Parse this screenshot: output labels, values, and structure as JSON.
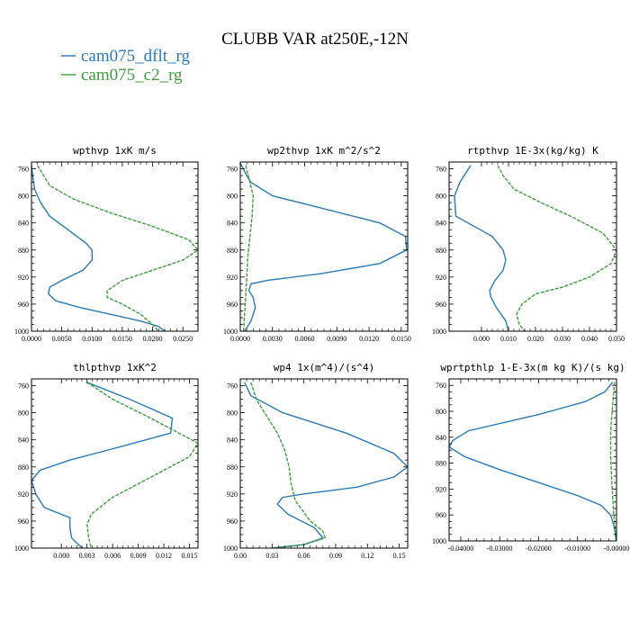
{
  "title": "CLUBB VAR at250E,-12N",
  "colors": {
    "dflt": "#2b7ab8",
    "c2": "#3c9e3c"
  },
  "chart_data": [
    {
      "type": "line",
      "title": "wpthvp  1xK m/s",
      "ylim": [
        1000,
        750
      ],
      "yticks": [
        760,
        800,
        840,
        880,
        920,
        960,
        1000
      ],
      "xlim": [
        0,
        0.0275
      ],
      "xticks": [
        "0.0000",
        "0.0050",
        "0.0100",
        "0.0150",
        "0.0200",
        "0.0250"
      ],
      "series": [
        {
          "name": "cam075_dflt_rg",
          "style": "solid",
          "x": [
            0.0,
            0.0002,
            0.0005,
            0.0015,
            0.003,
            0.006,
            0.009,
            0.01,
            0.01,
            0.0085,
            0.005,
            0.003,
            0.0028,
            0.004,
            0.008,
            0.013,
            0.018,
            0.021,
            0.022
          ],
          "y": [
            755,
            770,
            790,
            810,
            830,
            850,
            870,
            880,
            895,
            910,
            925,
            935,
            945,
            955,
            965,
            975,
            985,
            993,
            1000
          ]
        },
        {
          "name": "cam075_c2_rg",
          "style": "dashed",
          "x": [
            0.001,
            0.002,
            0.003,
            0.007,
            0.013,
            0.02,
            0.026,
            0.0275,
            0.025,
            0.02,
            0.015,
            0.0125,
            0.0125,
            0.015,
            0.018,
            0.02,
            0.021
          ],
          "y": [
            755,
            770,
            785,
            805,
            825,
            845,
            865,
            880,
            895,
            910,
            925,
            940,
            950,
            960,
            975,
            990,
            1000
          ]
        }
      ]
    },
    {
      "type": "line",
      "title": "wp2thvp  1xK m^2/s^2",
      "ylim": [
        1000,
        750
      ],
      "yticks": [
        760,
        800,
        840,
        880,
        920,
        960,
        1000
      ],
      "xlim": [
        0,
        0.0156
      ],
      "xticks": [
        "0.0000",
        "0.0030",
        "0.0060",
        "0.0090",
        "0.0120",
        "0.0150"
      ],
      "series": [
        {
          "name": "cam075_dflt_rg",
          "style": "solid",
          "x": [
            0.0,
            0.0006,
            0.001,
            0.003,
            0.008,
            0.013,
            0.0154,
            0.0155,
            0.013,
            0.0075,
            0.0025,
            0.001,
            0.0008,
            0.0012,
            0.0014,
            0.001,
            0.0004
          ],
          "y": [
            752,
            770,
            780,
            800,
            820,
            840,
            860,
            880,
            900,
            915,
            925,
            930,
            940,
            950,
            965,
            985,
            1000
          ]
        },
        {
          "name": "cam075_c2_rg",
          "style": "dashed",
          "x": [
            0.0005,
            0.0009,
            0.0012,
            0.0011,
            0.0009,
            0.0007,
            0.0006,
            0.0005,
            0.0004,
            0.0003
          ],
          "y": [
            755,
            780,
            800,
            830,
            860,
            890,
            920,
            950,
            975,
            1000
          ]
        }
      ]
    },
    {
      "type": "line",
      "title": "rtpthvp  1E-3x(kg/kg) K",
      "ylim": [
        1000,
        750
      ],
      "yticks": [
        760,
        800,
        840,
        880,
        920,
        960,
        1000
      ],
      "xlim": [
        -0.012,
        0.05
      ],
      "xticks": [
        "0.000",
        "0.010",
        "0.020",
        "0.030",
        "0.040",
        "0.050"
      ],
      "series": [
        {
          "name": "cam075_dflt_rg",
          "style": "solid",
          "x": [
            -0.004,
            -0.008,
            -0.01,
            -0.0095,
            -0.005,
            0.004,
            0.008,
            0.009,
            0.008,
            0.005,
            0.003,
            0.0035,
            0.0055,
            0.009,
            0.01
          ],
          "y": [
            755,
            780,
            800,
            830,
            840,
            860,
            880,
            895,
            910,
            925,
            940,
            950,
            965,
            985,
            1000
          ]
        },
        {
          "name": "cam075_c2_rg",
          "style": "dashed",
          "x": [
            0.006,
            0.008,
            0.012,
            0.022,
            0.033,
            0.045,
            0.05,
            0.048,
            0.04,
            0.03,
            0.02,
            0.015,
            0.013,
            0.014,
            0.016
          ],
          "y": [
            755,
            770,
            790,
            810,
            830,
            855,
            880,
            900,
            920,
            935,
            945,
            960,
            975,
            990,
            1000
          ]
        }
      ]
    },
    {
      "type": "line",
      "title": "thlpthvp  1xK^2",
      "ylim": [
        1000,
        750
      ],
      "yticks": [
        760,
        800,
        840,
        880,
        920,
        960,
        1000
      ],
      "xlim": [
        -0.0035,
        0.016
      ],
      "xticks": [
        "0.000",
        "0.003",
        "0.006",
        "0.009",
        "0.012",
        "0.015"
      ],
      "series": [
        {
          "name": "cam075_dflt_rg",
          "style": "solid",
          "x": [
            0.003,
            0.008,
            0.013,
            0.0128,
            0.007,
            0.001,
            -0.0025,
            -0.0035,
            -0.003,
            -0.002,
            0.001,
            0.001,
            0.0012,
            0.002,
            0.0025
          ],
          "y": [
            755,
            780,
            808,
            830,
            850,
            870,
            885,
            900,
            920,
            940,
            955,
            970,
            985,
            995,
            1000
          ]
        },
        {
          "name": "cam075_c2_rg",
          "style": "dashed",
          "x": [
            0.003,
            0.006,
            0.01,
            0.013,
            0.016,
            0.015,
            0.012,
            0.009,
            0.006,
            0.0035,
            0.003,
            0.0032,
            0.0035
          ],
          "y": [
            755,
            780,
            805,
            825,
            845,
            865,
            885,
            905,
            925,
            950,
            965,
            985,
            1000
          ]
        }
      ]
    },
    {
      "type": "line",
      "title": "wp4  1x(m^4)/(s^4)",
      "ylim": [
        1000,
        750
      ],
      "yticks": [
        760,
        800,
        840,
        880,
        920,
        960,
        1000
      ],
      "xlim": [
        0,
        0.158
      ],
      "xticks": [
        "0.00",
        "0.03",
        "0.06",
        "0.09",
        "0.12",
        "0.15"
      ],
      "series": [
        {
          "name": "cam075_dflt_rg",
          "style": "solid",
          "x": [
            0.004,
            0.01,
            0.04,
            0.1,
            0.145,
            0.158,
            0.145,
            0.11,
            0.06,
            0.04,
            0.035,
            0.045,
            0.07,
            0.078,
            0.06,
            0.03
          ],
          "y": [
            755,
            775,
            800,
            830,
            860,
            880,
            895,
            910,
            920,
            925,
            935,
            950,
            970,
            985,
            995,
            1000
          ]
        },
        {
          "name": "cam075_c2_rg",
          "style": "dashed",
          "x": [
            0.01,
            0.015,
            0.025,
            0.035,
            0.042,
            0.046,
            0.048,
            0.052,
            0.066,
            0.078,
            0.08,
            0.06,
            0.03
          ],
          "y": [
            755,
            780,
            805,
            830,
            855,
            880,
            905,
            930,
            960,
            975,
            985,
            995,
            1000
          ]
        }
      ]
    },
    {
      "type": "line",
      "title": "wprtpthlp  1-E-3x(m kg K)/(s kg)",
      "ylim": [
        1000,
        750
      ],
      "yticks": [
        760,
        800,
        840,
        880,
        920,
        960,
        1000
      ],
      "xlim": [
        -0.043,
        0
      ],
      "xticks": [
        "-0.04000",
        "-0.03000",
        "-0.02000",
        "-0.01000",
        "-0.00000"
      ],
      "series": [
        {
          "name": "cam075_dflt_rg",
          "style": "solid",
          "x": [
            -0.001,
            -0.003,
            -0.008,
            -0.02,
            -0.038,
            -0.042,
            -0.043,
            -0.039,
            -0.03,
            -0.02,
            -0.01,
            -0.004,
            -0.0015,
            -0.0005,
            -0.0001
          ],
          "y": [
            755,
            770,
            785,
            805,
            830,
            845,
            855,
            870,
            890,
            910,
            930,
            945,
            960,
            980,
            1000
          ]
        },
        {
          "name": "cam075_c2_rg",
          "style": "dashed",
          "x": [
            -0.0005,
            -0.001,
            -0.0015,
            -0.0015,
            -0.0012,
            -0.0008,
            -0.0004,
            -0.0001
          ],
          "y": [
            755,
            790,
            830,
            870,
            910,
            950,
            980,
            1000
          ]
        }
      ]
    }
  ]
}
